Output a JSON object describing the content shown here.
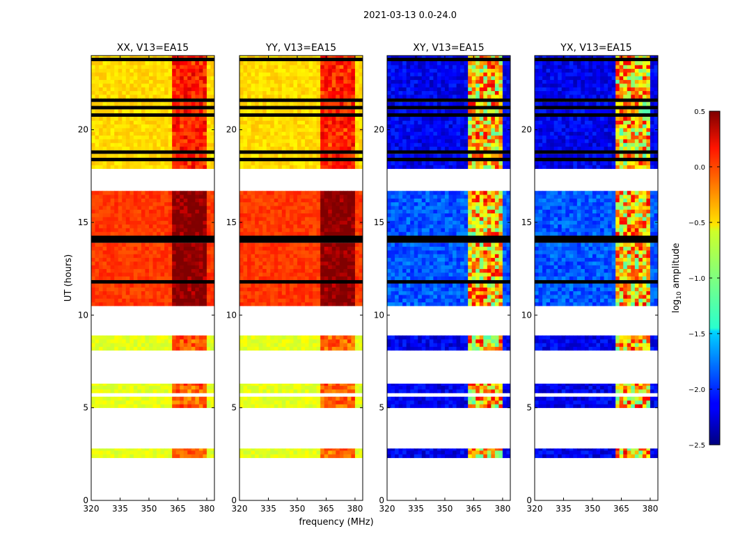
{
  "chart_data": {
    "type": "heatmap",
    "suptitle": "2021-03-13 0.0-24.0",
    "xlabel": "frequency (MHz)",
    "ylabel": "UT (hours)",
    "xlim": [
      320,
      384
    ],
    "ylim": [
      0,
      24
    ],
    "xticks": [
      320,
      335,
      350,
      365,
      380
    ],
    "yticks": [
      0,
      5,
      10,
      15,
      20
    ],
    "rfi_band_mhz": [
      363,
      380
    ],
    "panels": [
      {
        "title": "XX, V13=EA15",
        "pol": "XX",
        "type": "parallel"
      },
      {
        "title": "YY, V13=EA15",
        "pol": "YY",
        "type": "parallel"
      },
      {
        "title": "XY, V13=EA15",
        "pol": "XY",
        "type": "cross"
      },
      {
        "title": "YX, V13=EA15",
        "pol": "YX",
        "type": "cross"
      }
    ],
    "data_segments_ut_hours": [
      {
        "start": 2.3,
        "end": 2.8,
        "level": "low"
      },
      {
        "start": 5.0,
        "end": 6.3,
        "level": "low"
      },
      {
        "start": 8.1,
        "end": 8.9,
        "level": "low"
      },
      {
        "start": 10.5,
        "end": 16.7,
        "level": "high"
      },
      {
        "start": 17.9,
        "end": 24.0,
        "level": "mid"
      }
    ],
    "colorbar": {
      "label": "log10 amplitude",
      "label_main": "log",
      "label_sub": "10",
      "label_rest": " amplitude",
      "range": [
        -2.5,
        0.5
      ],
      "ticks": [
        "0.5",
        "0.0",
        "−0.5",
        "−1.0",
        "−1.5",
        "−2.0",
        "−2.5"
      ],
      "tick_values": [
        0.5,
        0.0,
        -0.5,
        -1.0,
        -1.5,
        -2.0,
        -2.5
      ],
      "colormap": "jet"
    }
  }
}
